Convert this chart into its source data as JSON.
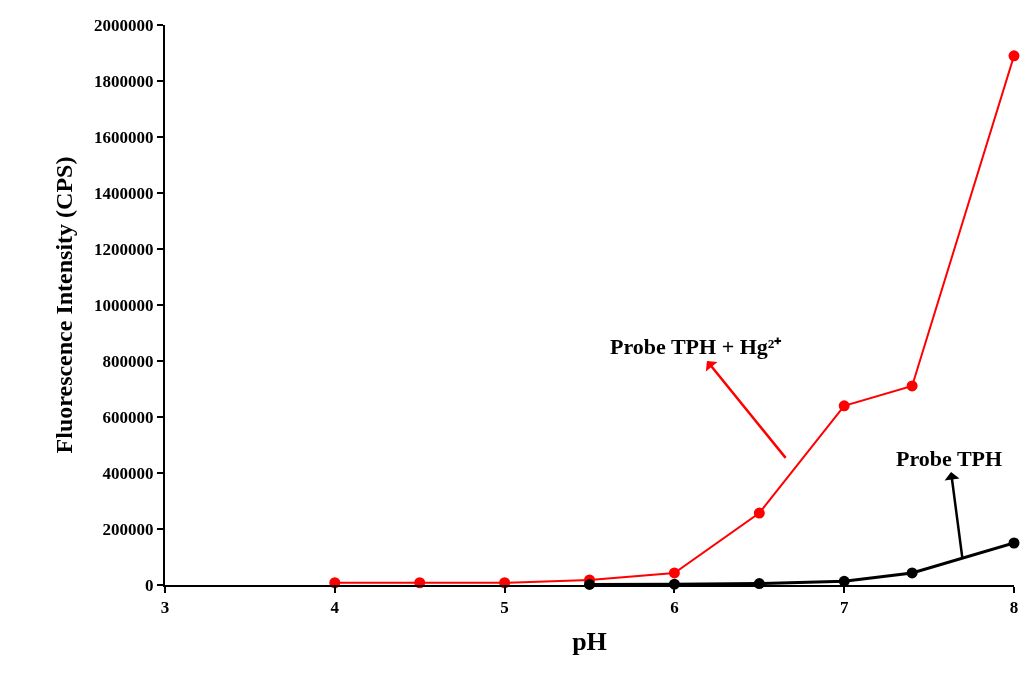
{
  "chart_data": {
    "type": "line",
    "xlabel": "pH",
    "ylabel": "Fluorescence Intensity (CPS)",
    "x": [
      4,
      4.5,
      5,
      5.5,
      6,
      6.5,
      7,
      7.4,
      8
    ],
    "series": [
      {
        "color": "#ff0000",
        "values": [
          8000,
          8000,
          8000,
          18000,
          43000,
          257000,
          640000,
          711000,
          1890000
        ]
      },
      {
        "color": "#000000",
        "values": [
          null,
          null,
          null,
          2000,
          3000,
          5000,
          13000,
          43000,
          150000
        ]
      }
    ],
    "annotations": [
      "Probe TPH + Hg²⁺",
      "Probe TPH"
    ],
    "xlim": [
      3,
      8
    ],
    "xticks": [
      3,
      4,
      5,
      6,
      7,
      8
    ],
    "ylim": [
      0,
      2000000
    ],
    "yticks": [
      0,
      200000,
      400000,
      600000,
      800000,
      1000000,
      1200000,
      1400000,
      1600000,
      1800000,
      2000000
    ],
    "marker": "circle",
    "line_style": "solid"
  }
}
